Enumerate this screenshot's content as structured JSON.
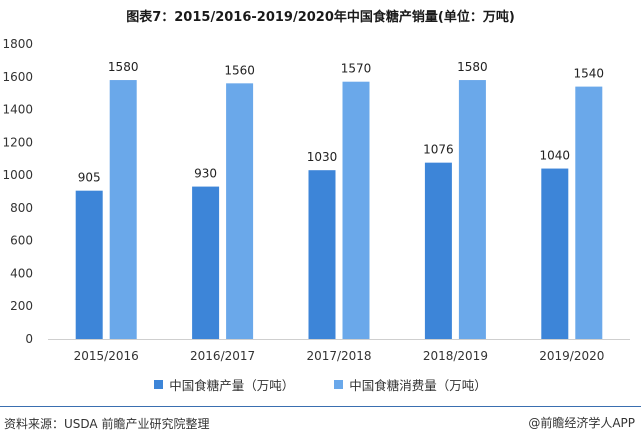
{
  "title": "图表7：2015/2016-2019/2020年中国食糖产销量(单位：万吨)",
  "chart_data": {
    "type": "bar",
    "categories": [
      "2015/2016",
      "2016/2017",
      "2017/2018",
      "2018/2019",
      "2019/2020"
    ],
    "series": [
      {
        "name": "中国食糖产量（万吨）",
        "values": [
          905,
          930,
          1030,
          1076,
          1040
        ],
        "color": "#3d85d8"
      },
      {
        "name": "中国食糖消费量（万吨）",
        "values": [
          1580,
          1560,
          1570,
          1580,
          1540
        ],
        "color": "#6aa8ea"
      }
    ],
    "ylim": [
      0,
      1800
    ],
    "yticks": [
      0,
      200,
      400,
      600,
      800,
      1000,
      1200,
      1400,
      1600,
      1800
    ],
    "grid": false,
    "legend_position": "bottom"
  },
  "source": "资料来源：USDA 前瞻产业研究院整理",
  "brand": "@前瞻经济学人APP"
}
